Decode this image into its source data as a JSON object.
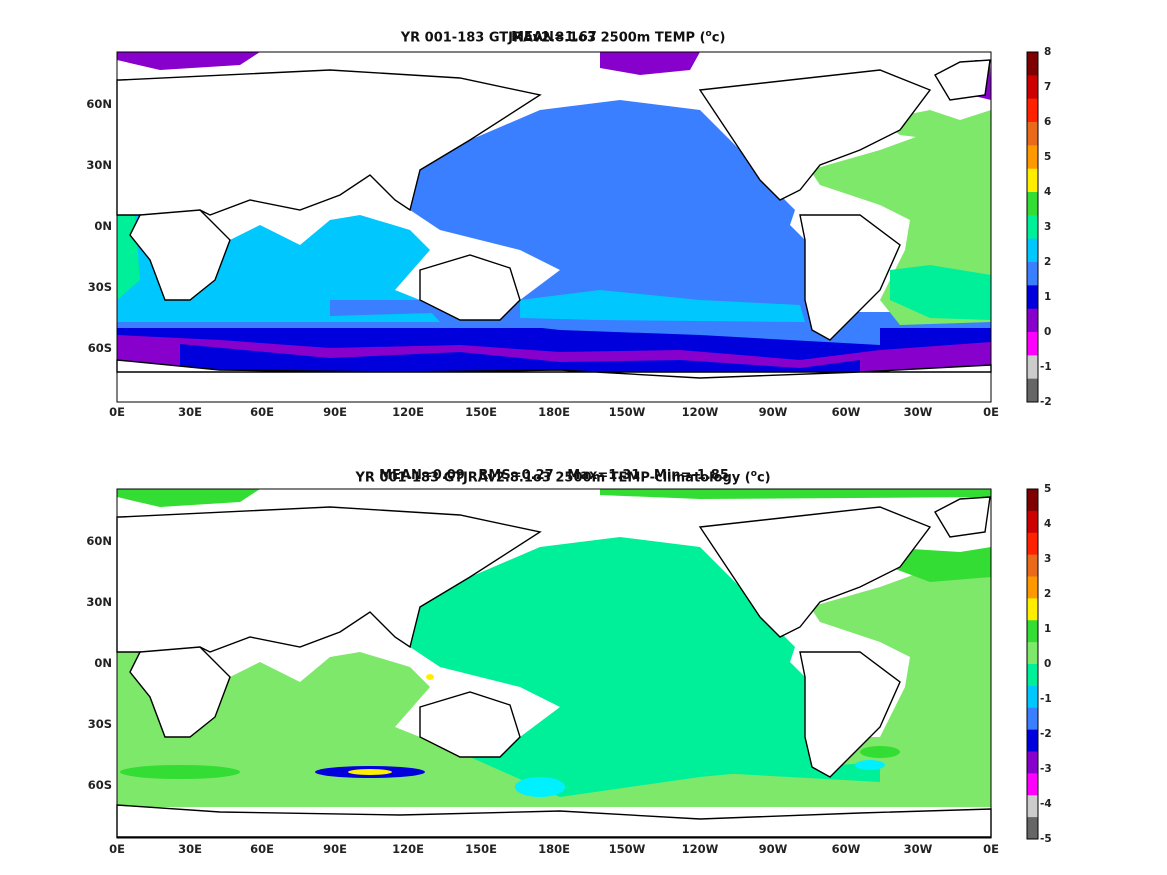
{
  "panels": [
    {
      "title_line1": "YR 001-183 GTJRAv2.8.1o3 2500m TEMP (",
      "title_unit": "o",
      "title_tail": "c)",
      "title_line2": "MEAN=1.67",
      "colorbar": {
        "labels": [
          "8",
          "7",
          "6",
          "5",
          "4",
          "3",
          "2",
          "1",
          "0",
          "-1",
          "-2"
        ],
        "colors": [
          "#7f0000",
          "#cc0000",
          "#ff2200",
          "#e86a1a",
          "#ff9900",
          "#ffee00",
          "#33dd33",
          "#00f09a",
          "#00c8ff",
          "#3a7fff",
          "#0000dd",
          "#8800cc",
          "#ff00ff",
          "#cccccc",
          "#666666"
        ]
      }
    },
    {
      "title_line1": "YR 001-183 GTJRAv2.8.1o3 2500m TEMP-climatology (",
      "title_unit": "o",
      "title_tail": "c)",
      "title_line2": "MEAN=0.09   RMS=0.27   Max=1.31   Min=-1.85",
      "colorbar": {
        "labels": [
          "5",
          "4",
          "3",
          "2",
          "1",
          "0",
          "-1",
          "-2",
          "-3",
          "-4",
          "-5"
        ],
        "colors": [
          "#7f0000",
          "#cc0000",
          "#ff2200",
          "#e86a1a",
          "#ff9900",
          "#ffee00",
          "#33dd33",
          "#7ee86a",
          "#00f09a",
          "#00c8ff",
          "#3a7fff",
          "#0000dd",
          "#8800cc",
          "#ff00ff",
          "#cccccc",
          "#666666"
        ]
      }
    }
  ],
  "x_ticks": [
    "0E",
    "30E",
    "60E",
    "90E",
    "120E",
    "150E",
    "180E",
    "150W",
    "120W",
    "90W",
    "60W",
    "30W",
    "0E"
  ],
  "y_ticks": [
    "60N",
    "30N",
    "0N",
    "30S",
    "60S"
  ],
  "colors": {
    "ocean_pacific_top": "#3a7fff",
    "ocean_indian_top": "#00c8ff",
    "ocean_atlantic_top": "#7ee86a",
    "southern_deep_top": "#0000dd",
    "arctic_top": "#8800cc",
    "ocean_bottom": "#00f09a",
    "ocean_bottom_light": "#7ee86a"
  }
}
